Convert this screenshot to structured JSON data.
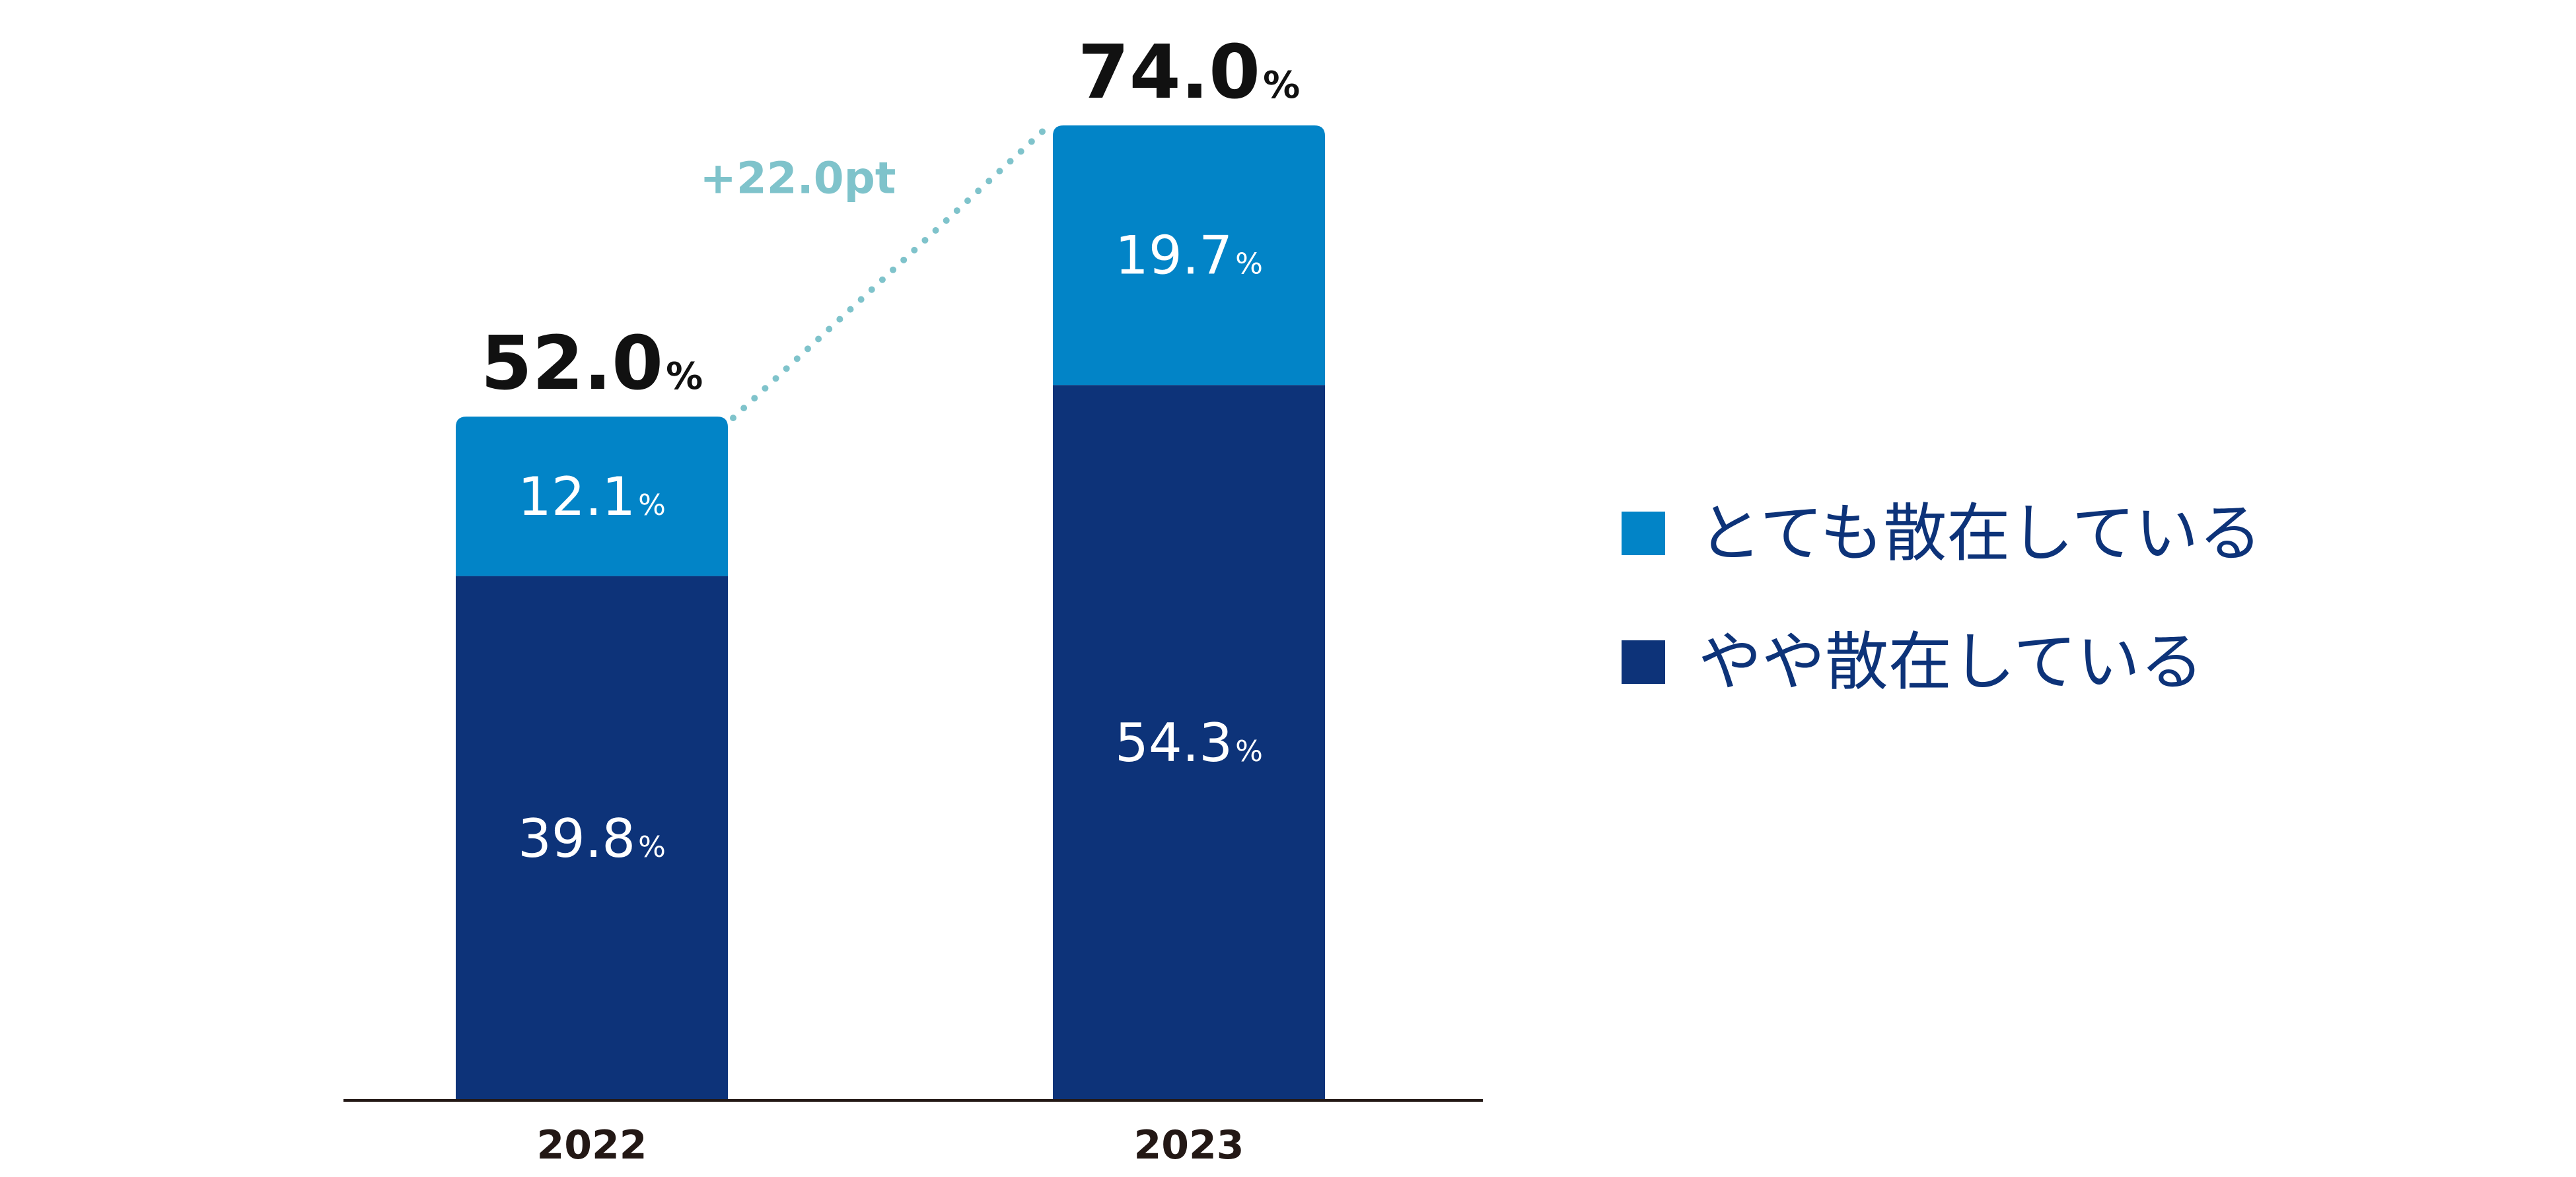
{
  "chart_data": {
    "type": "bar",
    "stacked": true,
    "categories": [
      "2022",
      "2023"
    ],
    "series": [
      {
        "name": "やや散在している",
        "values": [
          39.8,
          54.3
        ],
        "color": "#0d3379"
      },
      {
        "name": "とても散在している",
        "values": [
          12.1,
          19.7
        ],
        "color": "#0284c7"
      }
    ],
    "totals": [
      52.0,
      74.0
    ],
    "unit": "%",
    "annotation": "+22.0pt",
    "annotation_color": "#7fc3cb",
    "total_label_color": "#111111",
    "segment_label_color": "#ffffff",
    "axis_label_color": "#231815",
    "ylim": [
      0,
      74.0
    ],
    "grid": false,
    "legend_position": "right",
    "legend": [
      {
        "label": "とても散在している",
        "color": "#0284c7"
      },
      {
        "label": "やや散在している",
        "color": "#0d3379"
      }
    ]
  }
}
